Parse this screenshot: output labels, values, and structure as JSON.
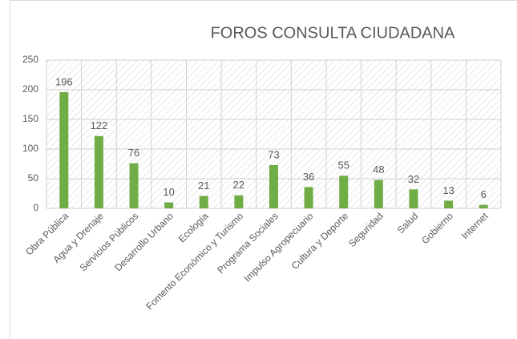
{
  "chart_data": {
    "type": "bar",
    "title": "FOROS CONSULTA CIUDADANA",
    "categories": [
      "Obra Pública",
      "Agua y Drenaje",
      "Servicios Públicos",
      "Desarrollo Urbano",
      "Ecología",
      "Fomento Económico y Turismo",
      "Programa Sociales",
      "Impulso Agropecuario",
      "Cultura y Deporte",
      "Seguridad",
      "Salud",
      "Gobierno",
      "Internet"
    ],
    "values": [
      196,
      122,
      76,
      10,
      21,
      22,
      73,
      36,
      55,
      48,
      32,
      13,
      6
    ],
    "color": "#70ad47",
    "ylim": [
      0,
      250
    ],
    "yticks": [
      0,
      50,
      100,
      150,
      200,
      250
    ],
    "grid": true
  }
}
